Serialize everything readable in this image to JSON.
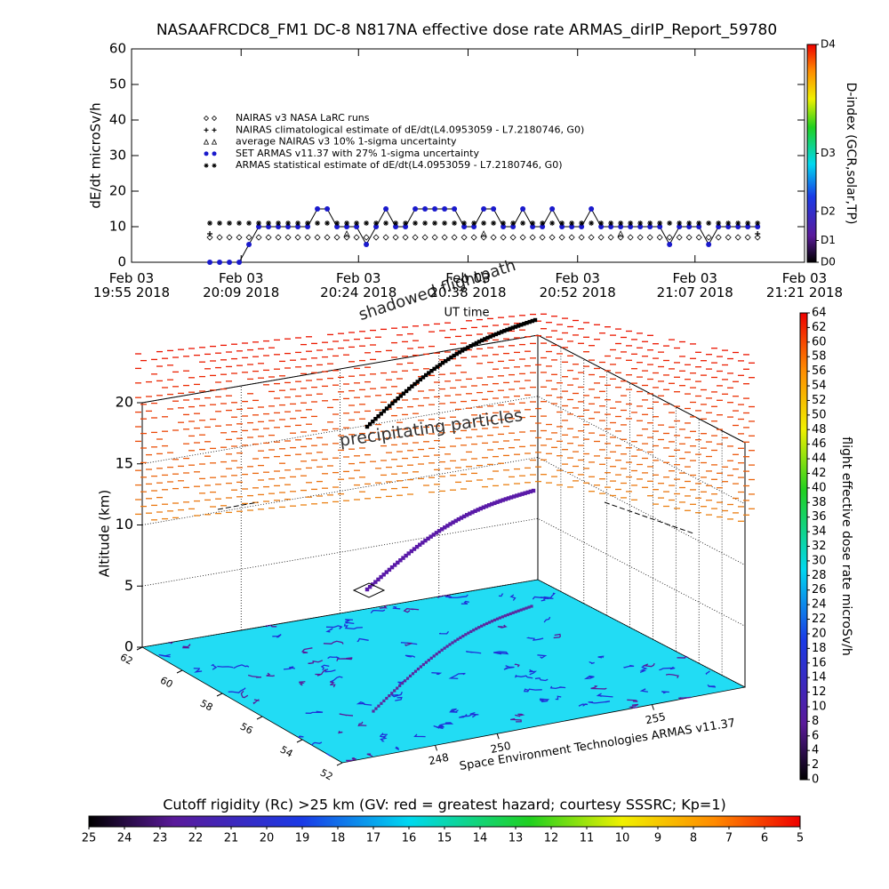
{
  "chart_data": [
    {
      "type": "line",
      "title": "NASAAFRCDC8_FM1 DC-8   N817NA effective dose rate ARMAS_dirIP_Report_59780",
      "ylabel": "dE/dt microSv/h",
      "xlabel": "UT time",
      "xlim": [
        1195,
        1281
      ],
      "xticks": [
        {
          "value": 1195,
          "label": "Feb 03\n19:55 2018"
        },
        {
          "value": 1209,
          "label": "Feb 03\n20:09 2018"
        },
        {
          "value": 1224,
          "label": "Feb 03\n20:24 2018"
        },
        {
          "value": 1238,
          "label": "Feb 03\n20:38 2018"
        },
        {
          "value": 1252,
          "label": "Feb 03\n20:52 2018"
        },
        {
          "value": 1267,
          "label": "Feb 03\n21:07 2018"
        },
        {
          "value": 1281,
          "label": "Feb 03\n21:21 2018"
        }
      ],
      "ylim": [
        0,
        60
      ],
      "yticks": [
        0,
        10,
        20,
        30,
        40,
        50,
        60
      ],
      "x": [
        1205,
        1206.25,
        1207.5,
        1208.75,
        1210,
        1211.25,
        1212.5,
        1213.75,
        1215,
        1216.25,
        1217.5,
        1218.75,
        1220,
        1221.25,
        1222.5,
        1223.75,
        1225,
        1226.25,
        1227.5,
        1228.75,
        1230,
        1231.25,
        1232.5,
        1233.75,
        1235,
        1236.25,
        1237.5,
        1238.75,
        1240,
        1241.25,
        1242.5,
        1243.75,
        1245,
        1246.25,
        1247.5,
        1248.75,
        1250,
        1251.25,
        1252.5,
        1253.75,
        1255,
        1256.25,
        1257.5,
        1258.75,
        1260,
        1261.25,
        1262.5,
        1263.75,
        1265,
        1266.25,
        1267.5,
        1268.75,
        1270,
        1271.25,
        1272.5,
        1273.75,
        1275
      ],
      "series": [
        {
          "name": "NAIRAS v3 NASA LaRC runs",
          "marker": "diamond",
          "color": "#000000",
          "values": [
            7,
            7,
            7,
            7,
            7,
            7,
            7,
            7,
            7,
            7,
            7,
            7,
            7,
            7,
            7,
            7,
            7,
            7,
            7,
            7,
            7,
            7,
            7,
            7,
            7,
            7,
            7,
            7,
            7,
            7,
            7,
            7,
            7,
            7,
            7,
            7,
            7,
            7,
            7,
            7,
            7,
            7,
            7,
            7,
            7,
            7,
            7,
            7,
            7,
            7,
            7,
            7,
            7,
            7,
            7,
            7,
            7
          ]
        },
        {
          "name": "NAIRAS climatological estimate of dE/dt(L4.0953059 - L7.2180746, G0)",
          "marker": "plus",
          "color": "#000000",
          "x": [
            1205,
            1275
          ],
          "values": [
            8,
            8
          ]
        },
        {
          "name": "average NAIRAS v3 10% 1-sigma uncertainty",
          "marker": "triangle",
          "color": "#000000",
          "x": [
            1222.5,
            1240,
            1257.5
          ],
          "values": [
            8,
            8,
            8
          ]
        },
        {
          "name": "SET ARMAS v11.37 with 27% 1-sigma uncertainty",
          "marker": "circle",
          "color": "#1a1acc",
          "line": "#000000",
          "values": [
            0,
            0,
            0,
            0,
            5,
            10,
            10,
            10,
            10,
            10,
            10,
            15,
            15,
            10,
            10,
            10,
            5,
            10,
            15,
            10,
            10,
            15,
            15,
            15,
            15,
            15,
            10,
            10,
            15,
            15,
            10,
            10,
            15,
            10,
            10,
            15,
            10,
            10,
            10,
            15,
            10,
            10,
            10,
            10,
            10,
            10,
            10,
            5,
            10,
            10,
            10,
            5,
            10,
            10,
            10,
            10,
            10
          ]
        },
        {
          "name": "ARMAS statistical estimate of dE/dt(L4.0953059 - L7.2180746, G0)",
          "marker": "star",
          "color": "#000000",
          "values": [
            11,
            11,
            11,
            11,
            11,
            11,
            11,
            11,
            11,
            11,
            11,
            11,
            11,
            11,
            11,
            11,
            11,
            11,
            11,
            11,
            11,
            11,
            11,
            11,
            11,
            11,
            11,
            11,
            11,
            11,
            11,
            11,
            11,
            11,
            11,
            11,
            11,
            11,
            11,
            11,
            11,
            11,
            11,
            11,
            11,
            11,
            11,
            11,
            11,
            11,
            11,
            11,
            11,
            11,
            11,
            11,
            11
          ]
        }
      ]
    },
    {
      "type": "colorbar",
      "orientation": "vertical",
      "label": "D-index (GCR,solar,TP)",
      "lim": [
        0,
        60
      ],
      "ticks": [
        {
          "value": 0,
          "label": "D0"
        },
        {
          "value": 6,
          "label": "D1"
        },
        {
          "value": 14,
          "label": "D2"
        },
        {
          "value": 30,
          "label": "D3"
        },
        {
          "value": 60,
          "label": "D4"
        }
      ]
    },
    {
      "type": "surface3d",
      "annotations": [
        "shadowed flightpath",
        "precipitating particles"
      ],
      "zlabel": "Altitude (km)",
      "zlim": [
        0,
        20
      ],
      "zticks": [
        0,
        5,
        10,
        15,
        20
      ],
      "latlim": [
        62,
        52
      ],
      "latticks": [
        62,
        60,
        58,
        56,
        54,
        52
      ],
      "lonlim": [
        245,
        258
      ],
      "lonticks": [
        248,
        250,
        255
      ],
      "credit": "Space Environment Technologies ARMAS v11.37"
    },
    {
      "type": "colorbar",
      "orientation": "vertical",
      "label": "flight effective dose rate microSv/h",
      "lim": [
        0,
        64
      ],
      "ticks": [
        0,
        2,
        4,
        6,
        8,
        10,
        12,
        14,
        16,
        18,
        20,
        22,
        24,
        26,
        28,
        30,
        32,
        34,
        36,
        38,
        40,
        42,
        44,
        46,
        48,
        50,
        52,
        54,
        56,
        58,
        60,
        62,
        64
      ]
    },
    {
      "type": "colorbar",
      "orientation": "horizontal",
      "label": "Cutoff rigidity (Rc) >25 km (GV: red = greatest hazard; courtesy SSSRC; Kp=1)",
      "lim": [
        25,
        5
      ],
      "ticks": [
        25,
        24,
        23,
        22,
        21,
        20,
        19,
        18,
        17,
        16,
        15,
        14,
        13,
        12,
        11,
        10,
        9,
        8,
        7,
        6,
        5
      ]
    }
  ]
}
